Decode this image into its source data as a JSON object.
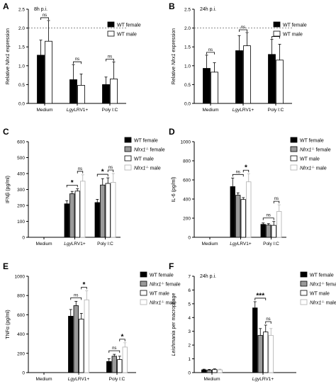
{
  "chart_data": [
    {
      "panel": "A",
      "type": "bar",
      "annotation": "8h p.i.",
      "ylabel": "Relative Nlrx1 expression",
      "ylim": [
        0,
        2.5
      ],
      "yticks": [
        "0.0",
        "0.5",
        "1.0",
        "1.5",
        "2.0",
        "2.5"
      ],
      "ref_line": 2.0,
      "categories": [
        "Medium",
        "LgyLRV1+",
        "Poly I:C"
      ],
      "series": [
        {
          "name": "WT female",
          "values": [
            1.28,
            0.63,
            0.5
          ],
          "errors": [
            0.4,
            0.4,
            0.2
          ],
          "fill": "#000000"
        },
        {
          "name": "WT male",
          "values": [
            1.65,
            0.48,
            0.65
          ],
          "errors": [
            0.55,
            0.3,
            0.45
          ],
          "fill": "#ffffff"
        }
      ],
      "significance": [
        "ns",
        "ns",
        "ns"
      ],
      "legend_position": "top-right"
    },
    {
      "panel": "B",
      "type": "bar",
      "annotation": "24h p.i.",
      "ylabel": "Relative Nlrx1 expression",
      "ylim": [
        0,
        2.5
      ],
      "yticks": [
        "0.0",
        "0.5",
        "1.0",
        "1.5",
        "2.0",
        "2.5"
      ],
      "ref_line": 2.0,
      "categories": [
        "Medium",
        "LgyLRV1+",
        "Poly I:C"
      ],
      "series": [
        {
          "name": "WT female",
          "values": [
            0.93,
            1.4,
            1.3
          ],
          "errors": [
            0.35,
            0.4,
            0.4
          ],
          "fill": "#000000"
        },
        {
          "name": "WT male",
          "values": [
            0.83,
            1.53,
            1.15
          ],
          "errors": [
            0.25,
            0.35,
            0.42
          ],
          "fill": "#ffffff"
        }
      ],
      "significance": [
        "ns",
        "ns",
        "ns"
      ],
      "legend_position": "top-right"
    },
    {
      "panel": "C",
      "type": "bar",
      "ylabel": "IFNβ (pg/ml)",
      "ylim": [
        0,
        600
      ],
      "yticks": [
        "0",
        "100",
        "200",
        "300",
        "400",
        "500",
        "600"
      ],
      "categories": [
        "Medium",
        "LgyLRV1+",
        "Poly I:C"
      ],
      "series": [
        {
          "name": "WT female",
          "values": [
            0,
            210,
            218
          ],
          "errors": [
            0,
            20,
            20
          ],
          "fill": "#000000"
        },
        {
          "name": "Nlrx1-/- female",
          "values": [
            0,
            273,
            328
          ],
          "errors": [
            0,
            15,
            40
          ],
          "fill": "#9a9a9a"
        },
        {
          "name": "WT male",
          "values": [
            0,
            290,
            338
          ],
          "errors": [
            0,
            15,
            35
          ],
          "fill": "#ffffff"
        },
        {
          "name": "Nlrx1-/- male",
          "values": [
            0,
            352,
            345
          ],
          "errors": [
            0,
            40,
            55
          ],
          "fill": "#ffffff"
        }
      ],
      "significance": [
        {
          "cat": 1,
          "from": 0,
          "to": 2,
          "label": "*"
        },
        {
          "cat": 1,
          "from": 2,
          "to": 3,
          "label": "ns"
        },
        {
          "cat": 2,
          "from": 0,
          "to": 2,
          "label": "*"
        },
        {
          "cat": 2,
          "from": 2,
          "to": 3,
          "label": "ns"
        }
      ],
      "legend_position": "top-right"
    },
    {
      "panel": "D",
      "type": "bar",
      "ylabel": "IL-6 (pg/ml)",
      "ylim": [
        0,
        1000
      ],
      "yticks": [
        "0",
        "200",
        "400",
        "600",
        "800",
        "1000"
      ],
      "categories": [
        "Medium",
        "LgyLRV1+",
        "Poly I:C"
      ],
      "series": [
        {
          "name": "WT female",
          "values": [
            0,
            530,
            135
          ],
          "errors": [
            0,
            90,
            15
          ],
          "fill": "#000000"
        },
        {
          "name": "Nlrx1-/- female",
          "values": [
            0,
            440,
            128
          ],
          "errors": [
            0,
            25,
            15
          ],
          "fill": "#9a9a9a"
        },
        {
          "name": "WT male",
          "values": [
            0,
            395,
            125
          ],
          "errors": [
            0,
            20,
            40
          ],
          "fill": "#ffffff"
        },
        {
          "name": "Nlrx1-/- male",
          "values": [
            0,
            580,
            270
          ],
          "errors": [
            0,
            85,
            70
          ],
          "fill": "#ffffff"
        }
      ],
      "significance": [
        {
          "cat": 1,
          "from": 0,
          "to": 2,
          "label": "ns"
        },
        {
          "cat": 1,
          "from": 2,
          "to": 3,
          "label": "*"
        },
        {
          "cat": 2,
          "from": 0,
          "to": 2,
          "label": "ns"
        },
        {
          "cat": 2,
          "from": 2,
          "to": 3,
          "label": "ns"
        }
      ],
      "legend_position": "top-right"
    },
    {
      "panel": "E",
      "type": "bar",
      "ylabel": "TNFα (pg/ml)",
      "ylim": [
        0,
        1000
      ],
      "yticks": [
        "0",
        "200",
        "400",
        "600",
        "800",
        "1000"
      ],
      "categories": [
        "Medium",
        "LgyLRV1+",
        "Poly I:C"
      ],
      "series": [
        {
          "name": "WT female",
          "values": [
            0,
            585,
            115
          ],
          "errors": [
            0,
            70,
            30
          ],
          "fill": "#000000"
        },
        {
          "name": "Nlrx1-/- female",
          "values": [
            0,
            695,
            170
          ],
          "errors": [
            0,
            45,
            20
          ],
          "fill": "#9a9a9a"
        },
        {
          "name": "WT male",
          "values": [
            0,
            555,
            135
          ],
          "errors": [
            0,
            60,
            35
          ],
          "fill": "#ffffff"
        },
        {
          "name": "Nlrx1-/- male",
          "values": [
            0,
            755,
            265
          ],
          "errors": [
            0,
            95,
            45
          ],
          "fill": "#ffffff"
        }
      ],
      "significance": [
        {
          "cat": 1,
          "from": 0,
          "to": 2,
          "label": "ns"
        },
        {
          "cat": 1,
          "from": 2,
          "to": 3,
          "label": "*"
        },
        {
          "cat": 2,
          "from": 0,
          "to": 2,
          "label": "ns"
        },
        {
          "cat": 2,
          "from": 2,
          "to": 3,
          "label": "*"
        }
      ],
      "legend_position": "top-right"
    },
    {
      "panel": "F",
      "type": "bar",
      "annotation": "24h p.i.",
      "ylabel": "Leishmania per macrophage",
      "ylim": [
        0,
        7
      ],
      "yticks": [
        "0",
        "1",
        "2",
        "3",
        "4",
        "5",
        "6",
        "7"
      ],
      "categories": [
        "Medium",
        "LgyLRV1+"
      ],
      "series": [
        {
          "name": "WT female",
          "values": [
            0.2,
            4.7
          ],
          "errors": [
            0.05,
            0.45
          ],
          "fill": "#000000"
        },
        {
          "name": "Nlrx1-/- female",
          "values": [
            0.18,
            2.7
          ],
          "errors": [
            0.05,
            0.5
          ],
          "fill": "#9a9a9a"
        },
        {
          "name": "WT male",
          "values": [
            0.22,
            2.95
          ],
          "errors": [
            0.05,
            0.5
          ],
          "fill": "#ffffff"
        },
        {
          "name": "Nlrx1-/- male",
          "values": [
            0.2,
            2.7
          ],
          "errors": [
            0.05,
            0.5
          ],
          "fill": "#ffffff"
        }
      ],
      "significance": [
        {
          "cat": 1,
          "from": 0,
          "to": 2,
          "label": "***"
        },
        {
          "cat": 1,
          "from": 2,
          "to": 3,
          "label": "ns"
        }
      ],
      "legend_position": "top-right"
    }
  ]
}
